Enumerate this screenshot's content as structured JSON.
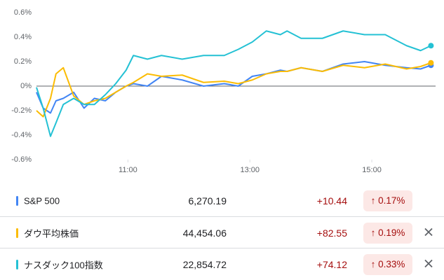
{
  "chart_data": {
    "type": "line",
    "x": [
      9.5,
      9.61,
      9.73,
      9.82,
      9.94,
      10.11,
      10.28,
      10.45,
      10.63,
      10.8,
      10.97,
      11.09,
      11.32,
      11.55,
      11.89,
      12.24,
      12.58,
      12.81,
      13.04,
      13.27,
      13.5,
      13.61,
      13.84,
      14.19,
      14.53,
      14.88,
      15.22,
      15.57,
      15.8,
      15.97
    ],
    "xlim": [
      9.5,
      16
    ],
    "xticks": [
      {
        "value": 11,
        "label": "11:00"
      },
      {
        "value": 13,
        "label": "13:00"
      },
      {
        "value": 15,
        "label": "15:00"
      }
    ],
    "ylim": [
      -0.6,
      0.6
    ],
    "yticks": [
      {
        "value": 0.6,
        "label": "0.6%"
      },
      {
        "value": 0.4,
        "label": "0.4%"
      },
      {
        "value": 0.2,
        "label": "0.2%"
      },
      {
        "value": 0,
        "label": "0%"
      },
      {
        "value": -0.2,
        "label": "-0.2%"
      },
      {
        "value": -0.4,
        "label": "-0.4%"
      },
      {
        "value": -0.6,
        "label": "-0.6%"
      }
    ],
    "series": [
      {
        "name": "S&P 500",
        "color": "#4285f4",
        "values": [
          -0.05,
          -0.18,
          -0.22,
          -0.12,
          -0.1,
          -0.05,
          -0.18,
          -0.1,
          -0.12,
          -0.05,
          0.0,
          0.02,
          0.0,
          0.08,
          0.05,
          0.0,
          0.02,
          0.0,
          0.08,
          0.1,
          0.13,
          0.12,
          0.15,
          0.12,
          0.18,
          0.2,
          0.17,
          0.15,
          0.14,
          0.17
        ]
      },
      {
        "name": "ダウ平均株価",
        "color": "#fbbc04",
        "values": [
          -0.2,
          -0.25,
          -0.1,
          0.1,
          0.15,
          -0.08,
          -0.15,
          -0.12,
          -0.1,
          -0.05,
          0.0,
          0.03,
          0.1,
          0.08,
          0.09,
          0.03,
          0.04,
          0.02,
          0.05,
          0.1,
          0.12,
          0.12,
          0.15,
          0.12,
          0.17,
          0.15,
          0.18,
          0.14,
          0.16,
          0.19
        ]
      },
      {
        "name": "ナスダック100指数",
        "color": "#24c1d4",
        "values": [
          -0.01,
          -0.18,
          -0.41,
          -0.3,
          -0.15,
          -0.1,
          -0.15,
          -0.15,
          -0.07,
          0.02,
          0.13,
          0.25,
          0.22,
          0.25,
          0.22,
          0.25,
          0.25,
          0.3,
          0.36,
          0.45,
          0.42,
          0.45,
          0.39,
          0.39,
          0.45,
          0.42,
          0.42,
          0.33,
          0.29,
          0.33
        ]
      }
    ]
  },
  "table": {
    "rows": [
      {
        "price": "6,270.19",
        "change": "+10.44",
        "percent": "↑ 0.17%"
      },
      {
        "price": "44,454.06",
        "change": "+82.55",
        "percent": "↑ 0.19%"
      },
      {
        "price": "22,854.72",
        "change": "+74.12",
        "percent": "↑ 0.33%"
      }
    ]
  }
}
